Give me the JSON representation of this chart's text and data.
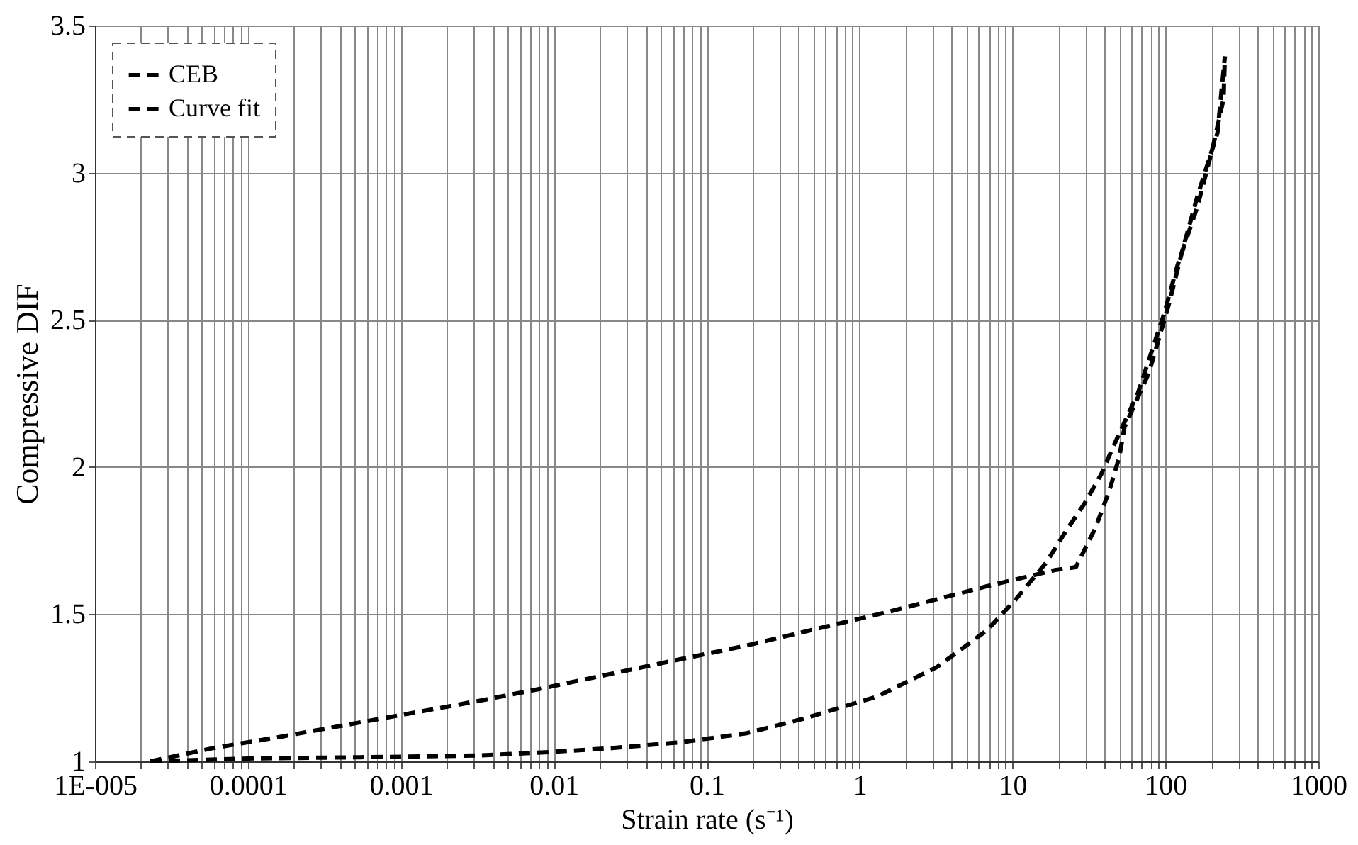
{
  "chart_data": {
    "type": "line",
    "xlabel": "Strain rate (s⁻¹)",
    "ylabel": "Compressive DIF",
    "log": "x",
    "grid": true,
    "legend": "top left",
    "marker": "none",
    "line_style": "dashed",
    "xlim": [
      1e-05,
      1000
    ],
    "ylim": [
      1,
      3.5
    ],
    "xticks": [
      {
        "value": 1e-05,
        "label": "1E-005"
      },
      {
        "value": 2e-05,
        "label": null
      },
      {
        "value": 3e-05,
        "label": null
      },
      {
        "value": 4e-05,
        "label": null
      },
      {
        "value": 5e-05,
        "label": null
      },
      {
        "value": 6e-05,
        "label": null
      },
      {
        "value": 7e-05,
        "label": null
      },
      {
        "value": 8e-05,
        "label": null
      },
      {
        "value": 9e-05,
        "label": null
      },
      0.0001,
      {
        "value": 0.0002,
        "label": null
      },
      {
        "value": 0.0003,
        "label": null
      },
      {
        "value": 0.0004,
        "label": null
      },
      {
        "value": 0.0005,
        "label": null
      },
      {
        "value": 0.0006,
        "label": null
      },
      {
        "value": 0.0007,
        "label": null
      },
      {
        "value": 0.0008,
        "label": null
      },
      {
        "value": 0.0009,
        "label": null
      },
      0.001,
      {
        "value": 0.002,
        "label": null
      },
      {
        "value": 0.003,
        "label": null
      },
      {
        "value": 0.004,
        "label": null
      },
      {
        "value": 0.005,
        "label": null
      },
      {
        "value": 0.006,
        "label": null
      },
      {
        "value": 0.007,
        "label": null
      },
      {
        "value": 0.008,
        "label": null
      },
      {
        "value": 0.009,
        "label": null
      },
      0.01,
      {
        "value": 0.02,
        "label": null
      },
      {
        "value": 0.03,
        "label": null
      },
      {
        "value": 0.04,
        "label": null
      },
      {
        "value": 0.05,
        "label": null
      },
      {
        "value": 0.06,
        "label": null
      },
      {
        "value": 0.07,
        "label": null
      },
      {
        "value": 0.08,
        "label": null
      },
      {
        "value": 0.09,
        "label": null
      },
      0.1,
      {
        "value": 0.2,
        "label": null
      },
      {
        "value": 0.3,
        "label": null
      },
      {
        "value": 0.4,
        "label": null
      },
      {
        "value": 0.5,
        "label": null
      },
      {
        "value": 0.6,
        "label": null
      },
      {
        "value": 0.7,
        "label": null
      },
      {
        "value": 0.8,
        "label": null
      },
      {
        "value": 0.9,
        "label": null
      },
      1,
      {
        "value": 2,
        "label": null
      },
      {
        "value": 3,
        "label": null
      },
      {
        "value": 4,
        "label": null
      },
      {
        "value": 5,
        "label": null
      },
      {
        "value": 6,
        "label": null
      },
      {
        "value": 7,
        "label": null
      },
      {
        "value": 8,
        "label": null
      },
      {
        "value": 9,
        "label": null
      },
      10,
      {
        "value": 20,
        "label": null
      },
      {
        "value": 30,
        "label": null
      },
      {
        "value": 40,
        "label": null
      },
      {
        "value": 50,
        "label": null
      },
      {
        "value": 60,
        "label": null
      },
      {
        "value": 70,
        "label": null
      },
      {
        "value": 80,
        "label": null
      },
      {
        "value": 90,
        "label": null
      },
      100,
      {
        "value": 200,
        "label": null
      },
      {
        "value": 300,
        "label": null
      },
      {
        "value": 400,
        "label": null
      },
      {
        "value": 500,
        "label": null
      },
      {
        "value": 600,
        "label": null
      },
      {
        "value": 700,
        "label": null
      },
      {
        "value": 800,
        "label": null
      },
      {
        "value": 900,
        "label": null
      },
      1000
    ],
    "yticks": [
      1,
      1.5,
      2,
      2.5,
      3,
      3.5
    ],
    "series": [
      {
        "name": "CEB",
        "color": "#000000",
        "x": [
          2.3e-05,
          5.9e-05,
          0.00017,
          0.00074,
          0.0032,
          0.0079,
          0.058,
          0.17,
          0.63,
          1.6,
          6.8,
          19,
          26,
          35,
          43,
          50,
          54,
          78,
          105,
          129,
          162,
          219,
          245
        ],
        "values": [
          1.0,
          1.045,
          1.085,
          1.145,
          1.205,
          1.245,
          1.34,
          1.39,
          1.46,
          1.51,
          1.595,
          1.65,
          1.66,
          1.795,
          1.92,
          2.035,
          2.135,
          2.32,
          2.55,
          2.735,
          2.92,
          3.135,
          3.395
        ]
      },
      {
        "name": "Curve fit",
        "color": "#000000",
        "x": [
          2.3e-05,
          0.00011,
          0.00079,
          0.0032,
          0.0083,
          0.024,
          0.068,
          0.18,
          0.43,
          1.3,
          3.2,
          6.8,
          10.5,
          16.6,
          21.9,
          29.5,
          38,
          45.7,
          66,
          98,
          120,
          162,
          204,
          240,
          245
        ],
        "values": [
          1.0,
          1.01,
          1.015,
          1.02,
          1.03,
          1.045,
          1.065,
          1.095,
          1.145,
          1.22,
          1.32,
          1.445,
          1.55,
          1.675,
          1.775,
          1.875,
          1.975,
          2.07,
          2.25,
          2.52,
          2.685,
          2.885,
          3.085,
          3.25,
          3.395
        ]
      }
    ]
  }
}
